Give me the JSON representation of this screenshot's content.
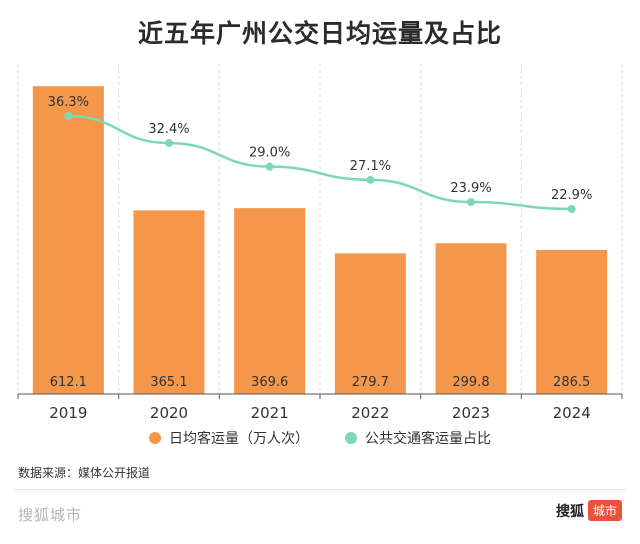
{
  "title": "近五年广州公交日均运量及占比",
  "legend": {
    "bar_label": "日均客运量（万人次）",
    "line_label": "公共交通客运量占比"
  },
  "source": "数据来源：媒体公开报道",
  "footer": {
    "brand_left": "搜狐城市",
    "brand_right_text": "搜狐",
    "brand_right_badge": "城市"
  },
  "colors": {
    "bar": "#f5974a",
    "line": "#7fd8b4",
    "grid": "#d9d9d9"
  },
  "chart_data": {
    "type": "bar",
    "categories": [
      "2019",
      "2020",
      "2021",
      "2022",
      "2023",
      "2024"
    ],
    "series": [
      {
        "name": "日均客运量（万人次）",
        "type": "bar",
        "values": [
          612.1,
          365.1,
          369.6,
          279.7,
          299.8,
          286.5
        ]
      },
      {
        "name": "公共交通客运量占比",
        "type": "line",
        "values": [
          36.3,
          32.4,
          29.0,
          27.1,
          23.9,
          22.9
        ],
        "labels": [
          "36.3%",
          "32.4%",
          "29.0%",
          "27.1%",
          "23.9%",
          "22.9%"
        ]
      }
    ],
    "bar_labels": [
      "612.1",
      "365.1",
      "369.6",
      "279.7",
      "299.8",
      "286.5"
    ],
    "bar_ylim": [
      0,
      700
    ],
    "line_ylim": [
      0,
      40
    ],
    "grid": "vertical dashed",
    "legend_position": "bottom"
  }
}
